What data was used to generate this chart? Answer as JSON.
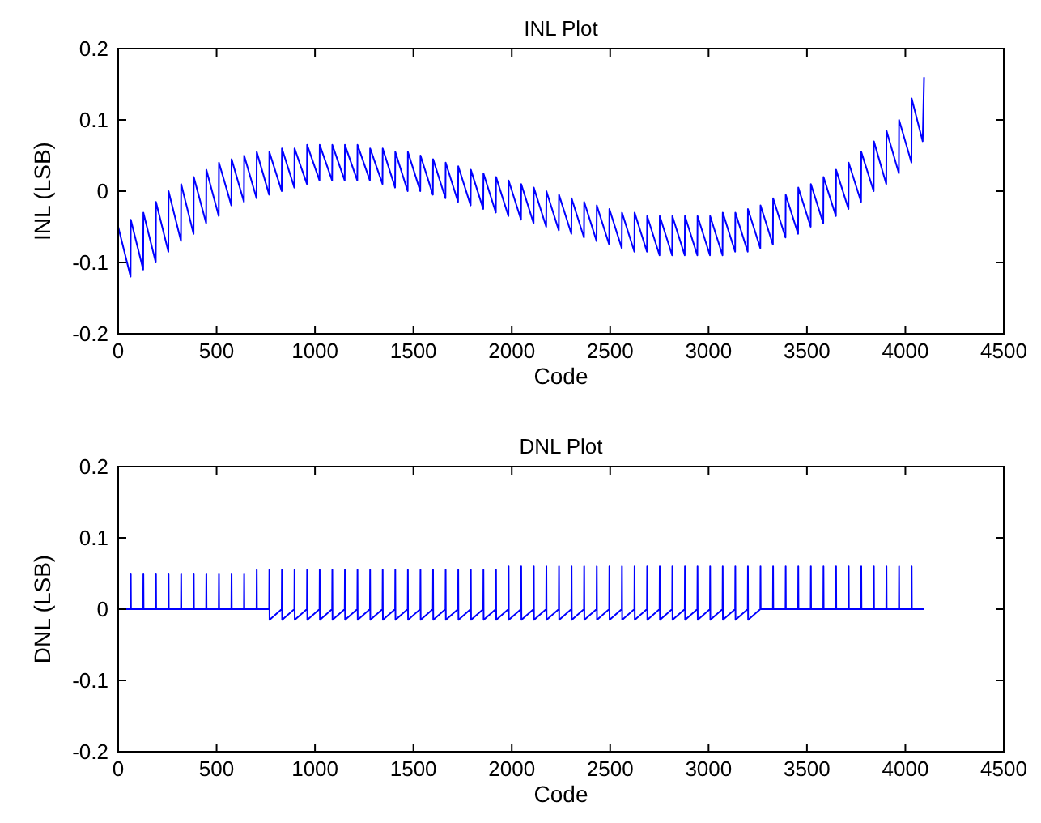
{
  "chart_data": [
    {
      "type": "line",
      "title": "INL Plot",
      "xlabel": "Code",
      "ylabel": "INL (LSB)",
      "xlim": [
        0,
        4500
      ],
      "xticks": [
        0,
        500,
        1000,
        1500,
        2000,
        2500,
        3000,
        3500,
        4000,
        4500
      ],
      "ylim": [
        -0.2,
        0.2
      ],
      "yticks": [
        -0.2,
        -0.1,
        0,
        0.1,
        0.2
      ],
      "grid": false,
      "series": [
        {
          "color": "#0000ff",
          "x": [
            0,
            63,
            64,
            127,
            128,
            191,
            192,
            255,
            256,
            319,
            320,
            383,
            384,
            447,
            448,
            511,
            512,
            575,
            576,
            639,
            640,
            703,
            704,
            767,
            768,
            831,
            832,
            895,
            896,
            959,
            960,
            1023,
            1024,
            1087,
            1088,
            1151,
            1152,
            1215,
            1216,
            1279,
            1280,
            1343,
            1344,
            1407,
            1408,
            1471,
            1472,
            1535,
            1536,
            1599,
            1600,
            1663,
            1664,
            1727,
            1728,
            1791,
            1792,
            1855,
            1856,
            1919,
            1920,
            1983,
            1984,
            2047,
            2048,
            2111,
            2112,
            2175,
            2176,
            2239,
            2240,
            2303,
            2304,
            2367,
            2368,
            2431,
            2432,
            2495,
            2496,
            2559,
            2560,
            2623,
            2624,
            2687,
            2688,
            2751,
            2752,
            2815,
            2816,
            2879,
            2880,
            2943,
            2944,
            3007,
            3008,
            3071,
            3072,
            3135,
            3136,
            3199,
            3200,
            3263,
            3264,
            3327,
            3328,
            3391,
            3392,
            3455,
            3456,
            3519,
            3520,
            3583,
            3584,
            3647,
            3648,
            3711,
            3712,
            3775,
            3776,
            3839,
            3840,
            3903,
            3904,
            3967,
            3968,
            4031,
            4032,
            4088,
            4095
          ],
          "values": [
            -0.05,
            -0.12,
            -0.04,
            -0.11,
            -0.03,
            -0.1,
            -0.015,
            -0.085,
            0.0,
            -0.07,
            0.01,
            -0.06,
            0.02,
            -0.045,
            0.03,
            -0.035,
            0.04,
            -0.02,
            0.045,
            -0.015,
            0.05,
            -0.01,
            0.055,
            -0.005,
            0.055,
            0.0,
            0.06,
            0.005,
            0.06,
            0.01,
            0.065,
            0.015,
            0.065,
            0.015,
            0.065,
            0.015,
            0.065,
            0.015,
            0.065,
            0.015,
            0.06,
            0.01,
            0.06,
            0.005,
            0.055,
            0.0,
            0.055,
            0.0,
            0.05,
            -0.005,
            0.045,
            -0.01,
            0.04,
            -0.015,
            0.035,
            -0.02,
            0.03,
            -0.025,
            0.025,
            -0.03,
            0.02,
            -0.035,
            0.015,
            -0.04,
            0.01,
            -0.045,
            0.005,
            -0.05,
            0.0,
            -0.055,
            -0.005,
            -0.06,
            -0.01,
            -0.065,
            -0.015,
            -0.07,
            -0.02,
            -0.075,
            -0.025,
            -0.08,
            -0.03,
            -0.085,
            -0.03,
            -0.085,
            -0.035,
            -0.09,
            -0.035,
            -0.09,
            -0.035,
            -0.09,
            -0.035,
            -0.09,
            -0.035,
            -0.09,
            -0.035,
            -0.09,
            -0.03,
            -0.085,
            -0.03,
            -0.085,
            -0.025,
            -0.08,
            -0.02,
            -0.075,
            -0.01,
            -0.065,
            -0.005,
            -0.06,
            0.005,
            -0.05,
            0.01,
            -0.045,
            0.02,
            -0.035,
            0.03,
            -0.025,
            0.04,
            -0.015,
            0.055,
            0.0,
            0.07,
            0.01,
            0.085,
            0.025,
            0.1,
            0.04,
            0.13,
            0.07,
            0.16
          ]
        }
      ]
    },
    {
      "type": "line",
      "title": "DNL Plot",
      "xlabel": "Code",
      "ylabel": "DNL (LSB)",
      "xlim": [
        0,
        4500
      ],
      "xticks": [
        0,
        500,
        1000,
        1500,
        2000,
        2500,
        3000,
        3500,
        4000,
        4500
      ],
      "ylim": [
        -0.2,
        0.2
      ],
      "yticks": [
        -0.2,
        -0.1,
        0,
        0.1,
        0.2
      ],
      "grid": false,
      "series": [
        {
          "color": "#0000ff",
          "x": [
            0,
            63,
            64,
            65,
            127,
            128,
            129,
            191,
            192,
            193,
            255,
            256,
            257,
            319,
            320,
            321,
            383,
            384,
            385,
            447,
            448,
            449,
            511,
            512,
            513,
            575,
            576,
            577,
            639,
            640,
            641,
            703,
            704,
            705,
            767,
            768,
            769,
            831,
            832,
            833,
            895,
            896,
            897,
            959,
            960,
            961,
            1023,
            1024,
            1025,
            1087,
            1088,
            1089,
            1151,
            1152,
            1153,
            1215,
            1216,
            1217,
            1279,
            1280,
            1281,
            1343,
            1344,
            1345,
            1407,
            1408,
            1409,
            1471,
            1472,
            1473,
            1535,
            1536,
            1537,
            1599,
            1600,
            1601,
            1663,
            1664,
            1665,
            1727,
            1728,
            1729,
            1791,
            1792,
            1793,
            1855,
            1856,
            1857,
            1919,
            1920,
            1921,
            1983,
            1984,
            1985,
            2047,
            2048,
            2049,
            2111,
            2112,
            2113,
            2175,
            2176,
            2177,
            2239,
            2240,
            2241,
            2303,
            2304,
            2305,
            2367,
            2368,
            2369,
            2431,
            2432,
            2433,
            2495,
            2496,
            2497,
            2559,
            2560,
            2561,
            2623,
            2624,
            2625,
            2687,
            2688,
            2689,
            2751,
            2752,
            2753,
            2815,
            2816,
            2817,
            2879,
            2880,
            2881,
            2943,
            2944,
            2945,
            3007,
            3008,
            3009,
            3071,
            3072,
            3073,
            3135,
            3136,
            3137,
            3199,
            3200,
            3201,
            3263,
            3264,
            3265,
            3327,
            3328,
            3329,
            3391,
            3392,
            3393,
            3455,
            3456,
            3457,
            3519,
            3520,
            3521,
            3583,
            3584,
            3585,
            3647,
            3648,
            3649,
            3711,
            3712,
            3713,
            3775,
            3776,
            3777,
            3839,
            3840,
            3841,
            3903,
            3904,
            3905,
            3967,
            3968,
            3969,
            4031,
            4032,
            4033,
            4095
          ],
          "values": [
            0,
            0,
            0.05,
            0,
            0,
            0.05,
            0,
            0,
            0.05,
            0,
            0,
            0.05,
            0,
            0,
            0.05,
            0,
            0,
            0.05,
            0,
            0,
            0.05,
            0,
            0,
            0.05,
            0,
            0,
            0.05,
            0,
            0,
            0.05,
            0,
            0,
            0.055,
            0,
            0,
            0.055,
            -0.015,
            0,
            0.055,
            -0.015,
            0,
            0.055,
            -0.015,
            0,
            0.055,
            -0.015,
            0,
            0.055,
            -0.015,
            0,
            0.055,
            -0.015,
            0,
            0.055,
            -0.015,
            0,
            0.055,
            -0.015,
            0,
            0.055,
            -0.015,
            0,
            0.055,
            -0.015,
            0,
            0.055,
            -0.015,
            0,
            0.055,
            -0.015,
            0,
            0.055,
            -0.015,
            0,
            0.055,
            -0.015,
            0,
            0.055,
            -0.015,
            0,
            0.055,
            -0.015,
            0,
            0.055,
            -0.015,
            0,
            0.055,
            -0.015,
            0,
            0.055,
            -0.015,
            0,
            0.06,
            -0.015,
            0,
            0.06,
            -0.015,
            0,
            0.06,
            -0.015,
            0,
            0.06,
            -0.015,
            0,
            0.06,
            -0.015,
            0,
            0.06,
            -0.015,
            0,
            0.06,
            -0.015,
            0,
            0.06,
            -0.015,
            0,
            0.06,
            -0.015,
            0,
            0.06,
            -0.015,
            0,
            0.06,
            -0.015,
            0,
            0.06,
            -0.015,
            0,
            0.06,
            -0.015,
            0,
            0.06,
            -0.015,
            0,
            0.06,
            -0.015,
            0,
            0.06,
            -0.015,
            0,
            0.06,
            -0.015,
            0,
            0.06,
            -0.015,
            0,
            0.06,
            -0.015,
            0,
            0.06,
            -0.015,
            0,
            0.06,
            0,
            0,
            0.06,
            0,
            0,
            0.06,
            0,
            0,
            0.06,
            0,
            0,
            0.06,
            0,
            0,
            0.06,
            0,
            0,
            0.06,
            0,
            0,
            0.06,
            0,
            0,
            0.06,
            0,
            0,
            0.06,
            0,
            0,
            0.06,
            0,
            0,
            0.06,
            0,
            0,
            0.06,
            0,
            0
          ]
        }
      ]
    }
  ]
}
